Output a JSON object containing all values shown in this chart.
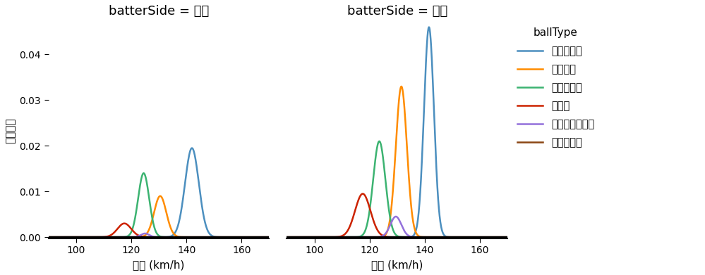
{
  "title_left": "batterSide = 左打",
  "title_right": "batterSide = 右打",
  "xlabel": "球速 (km/h)",
  "ylabel": "確率密度",
  "legend_title": "ballType",
  "ball_types": [
    "ストレート",
    "フォーク",
    "スライダー",
    "カーブ",
    "チェンジアップ",
    "ツーシーム"
  ],
  "colors": [
    "#4C8FBF",
    "#FF8C00",
    "#3CB371",
    "#CC2200",
    "#9370DB",
    "#8B4513"
  ],
  "left_params": [
    [
      142.0,
      2.5,
      0.0195
    ],
    [
      130.5,
      2.2,
      0.009
    ],
    [
      124.5,
      2.0,
      0.014
    ],
    [
      117.5,
      2.5,
      0.003
    ],
    [
      125.0,
      1.5,
      0.0008
    ],
    null
  ],
  "right_params": [
    [
      141.5,
      1.8,
      0.046
    ],
    [
      131.5,
      2.0,
      0.033
    ],
    [
      123.5,
      2.2,
      0.021
    ],
    [
      117.5,
      2.8,
      0.0095
    ],
    [
      129.5,
      2.0,
      0.0045
    ],
    null
  ],
  "xlim": [
    90,
    170
  ],
  "ylim": [
    -0.0003,
    0.047
  ],
  "xticks": [
    100,
    120,
    140,
    160
  ],
  "yticks": [
    0.0,
    0.01,
    0.02,
    0.03,
    0.04
  ],
  "figsize": [
    9.99,
    3.91
  ],
  "dpi": 100
}
